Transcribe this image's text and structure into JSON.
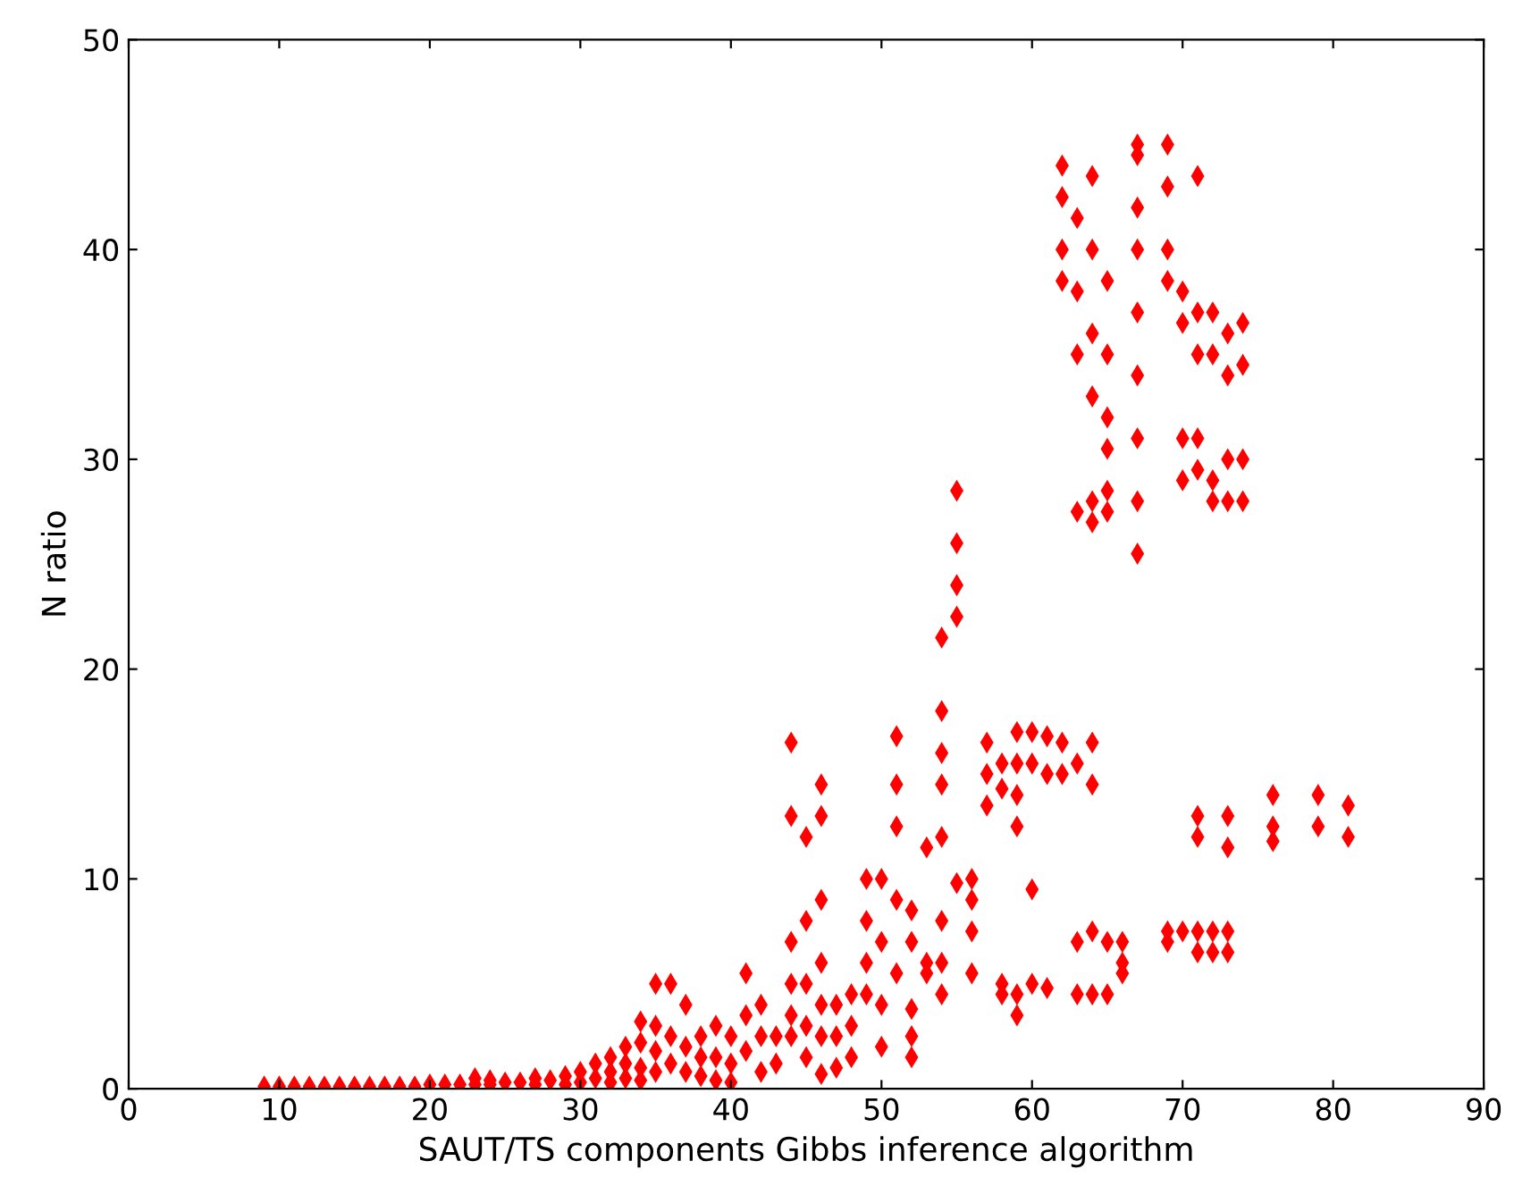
{
  "chart_data": {
    "type": "scatter",
    "xlabel": "SAUT/TS components Gibbs inference algorithm",
    "ylabel": "N ratio",
    "marker": "diamond",
    "grid": false,
    "legend": false,
    "xlim": [
      0,
      90
    ],
    "ylim": [
      0,
      50
    ],
    "xticks": [
      0,
      10,
      20,
      30,
      40,
      50,
      60,
      70,
      80,
      90
    ],
    "yticks": [
      0,
      10,
      20,
      30,
      40,
      50
    ],
    "series": [
      {
        "color": "#ff0000",
        "x": [
          9,
          10,
          11,
          12,
          13,
          14,
          15,
          16,
          17,
          18,
          19,
          20,
          21,
          22,
          23,
          23,
          24,
          24,
          25,
          26,
          27,
          27,
          28,
          29,
          29,
          30,
          30,
          31,
          31,
          32,
          32,
          32,
          33,
          33,
          33,
          34,
          34,
          34,
          34,
          35,
          35,
          35,
          35,
          36,
          36,
          36,
          37,
          37,
          37,
          38,
          38,
          38,
          39,
          39,
          39,
          40,
          40,
          40,
          41,
          41,
          41,
          42,
          42,
          42,
          43,
          43,
          44,
          44,
          44,
          44,
          44,
          44,
          45,
          45,
          45,
          45,
          45,
          46,
          46,
          46,
          46,
          46,
          46,
          46,
          47,
          47,
          47,
          48,
          48,
          48,
          49,
          49,
          49,
          49,
          50,
          50,
          50,
          50,
          51,
          51,
          51,
          51,
          51,
          52,
          52,
          52,
          52,
          52,
          53,
          53,
          53,
          54,
          54,
          54,
          54,
          54,
          54,
          54,
          54,
          55,
          55,
          55,
          55,
          55,
          56,
          56,
          56,
          56,
          57,
          57,
          57,
          58,
          58,
          58,
          58,
          59,
          59,
          59,
          59,
          59,
          59,
          60,
          60,
          60,
          60,
          61,
          61,
          61,
          62,
          62,
          62,
          62,
          62,
          62,
          63,
          63,
          63,
          63,
          63,
          63,
          63,
          64,
          64,
          64,
          64,
          64,
          64,
          64,
          64,
          64,
          64,
          65,
          65,
          65,
          65,
          65,
          65,
          65,
          65,
          66,
          66,
          66,
          67,
          67,
          67,
          67,
          67,
          67,
          67,
          67,
          67,
          69,
          69,
          69,
          69,
          69,
          69,
          70,
          70,
          70,
          70,
          70,
          71,
          71,
          71,
          71,
          71,
          71,
          71,
          71,
          71,
          72,
          72,
          72,
          72,
          72,
          72,
          73,
          73,
          73,
          73,
          73,
          73,
          73,
          73,
          74,
          74,
          74,
          74,
          76,
          76,
          76,
          79,
          79,
          81,
          81
        ],
        "values": [
          0.1,
          0.1,
          0.1,
          0.1,
          0.1,
          0.1,
          0.1,
          0.1,
          0.1,
          0.1,
          0.1,
          0.2,
          0.2,
          0.2,
          0.5,
          0.2,
          0.4,
          0.2,
          0.3,
          0.3,
          0.5,
          0.2,
          0.4,
          0.6,
          0.2,
          0.8,
          0.3,
          1.2,
          0.5,
          1.5,
          0.8,
          0.3,
          2,
          1.2,
          0.5,
          3.2,
          2.2,
          1,
          0.4,
          5,
          3,
          1.8,
          0.8,
          5,
          2.5,
          1.2,
          4,
          2,
          0.8,
          2.5,
          1.5,
          0.6,
          3,
          1.5,
          0.4,
          2.5,
          1.2,
          0.3,
          5.5,
          3.5,
          1.8,
          4,
          2.5,
          0.8,
          2.5,
          1.2,
          16.5,
          13,
          7,
          5,
          3.5,
          2.5,
          12,
          8,
          5,
          3,
          1.5,
          14.5,
          13,
          9,
          6,
          4,
          2.5,
          0.7,
          4,
          2.5,
          1,
          4.5,
          3,
          1.5,
          10,
          8,
          6,
          4.5,
          10,
          7,
          4,
          2,
          16.8,
          14.5,
          12.5,
          9,
          5.5,
          8.5,
          7,
          3.8,
          2.5,
          1.5,
          11.5,
          6,
          5.5,
          21.5,
          18,
          16,
          14.5,
          12,
          8,
          6,
          4.5,
          28.5,
          26,
          24,
          22.5,
          9.8,
          10,
          9,
          7.5,
          5.5,
          16.5,
          15,
          13.5,
          15.5,
          14.3,
          5,
          4.5,
          17,
          15.5,
          14,
          12.5,
          4.5,
          3.5,
          17,
          15.5,
          9.5,
          5,
          16.8,
          15,
          4.8,
          44,
          42.5,
          40,
          38.5,
          16.5,
          15,
          41.5,
          38,
          35,
          27.5,
          15.5,
          7,
          4.5,
          43.5,
          40,
          36,
          33,
          28,
          27,
          16.5,
          14.5,
          7.5,
          4.5,
          38.5,
          35,
          32,
          30.5,
          28.5,
          27.5,
          7,
          4.5,
          7,
          6,
          5.5,
          45,
          44.5,
          42,
          40,
          37,
          34,
          31,
          28,
          25.5,
          45,
          43,
          40,
          38.5,
          7.5,
          7,
          38,
          36.5,
          31,
          29,
          7.5,
          43.5,
          37,
          35,
          31,
          29.5,
          13,
          12,
          7.5,
          6.5,
          37,
          35,
          29,
          28,
          7.5,
          6.5,
          36,
          34,
          30,
          28,
          13,
          11.5,
          7.5,
          6.5,
          36.5,
          34.5,
          30,
          28,
          14,
          12.5,
          11.8,
          14,
          12.5,
          13.5,
          12
        ]
      }
    ]
  }
}
